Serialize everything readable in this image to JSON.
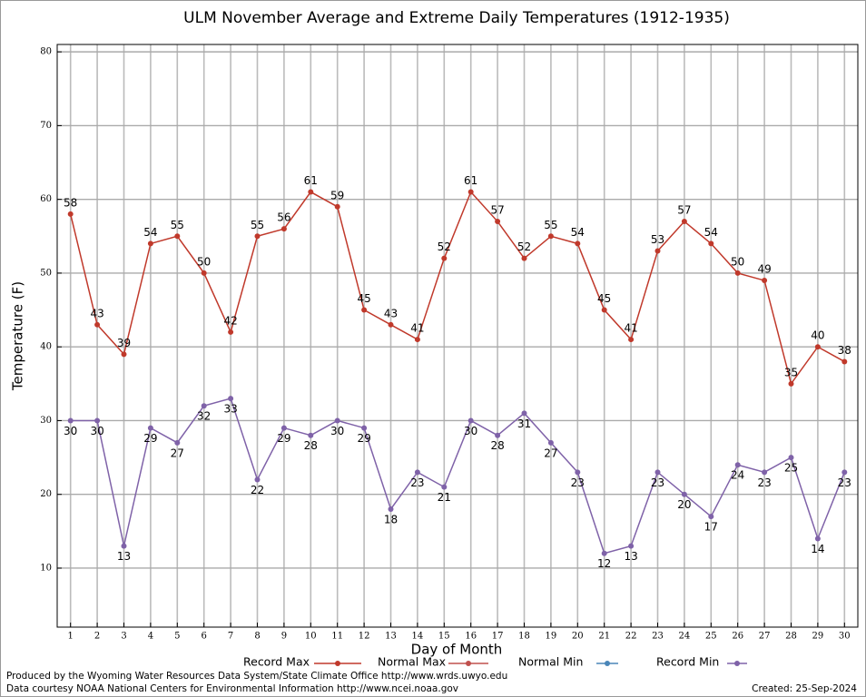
{
  "chart_data": {
    "type": "line",
    "title": "ULM November Average and Extreme Daily Temperatures (1912-1935)",
    "xlabel": "Day of Month",
    "ylabel": "Temperature (F)",
    "x": [
      1,
      2,
      3,
      4,
      5,
      6,
      7,
      8,
      9,
      10,
      11,
      12,
      13,
      14,
      15,
      16,
      17,
      18,
      19,
      20,
      21,
      22,
      23,
      24,
      25,
      26,
      27,
      28,
      29,
      30
    ],
    "xlim": [
      0.5,
      30.5
    ],
    "xticks": [
      1,
      2,
      3,
      4,
      5,
      6,
      7,
      8,
      9,
      10,
      11,
      12,
      13,
      14,
      15,
      16,
      17,
      18,
      19,
      20,
      21,
      22,
      23,
      24,
      25,
      26,
      27,
      28,
      29,
      30
    ],
    "ylim": [
      2,
      81
    ],
    "yticks": [
      10,
      20,
      30,
      40,
      50,
      60,
      70,
      80
    ],
    "grid": true,
    "series": [
      {
        "name": "Record Max",
        "color": "#c0392b",
        "values": [
          58,
          43,
          39,
          54,
          55,
          50,
          42,
          55,
          56,
          61,
          59,
          45,
          43,
          41,
          52,
          61,
          57,
          52,
          55,
          54,
          45,
          41,
          53,
          57,
          54,
          50,
          49,
          35,
          40,
          38
        ]
      },
      {
        "name": "Normal Max",
        "color": "#c0504d",
        "values": [
          null,
          null,
          null,
          null,
          null,
          null,
          null,
          null,
          null,
          null,
          null,
          null,
          null,
          null,
          null,
          null,
          null,
          null,
          null,
          null,
          null,
          null,
          null,
          null,
          null,
          null,
          null,
          null,
          null,
          null
        ]
      },
      {
        "name": "Normal Min",
        "color": "#4a86b8",
        "values": [
          null,
          null,
          null,
          null,
          null,
          null,
          null,
          null,
          null,
          null,
          null,
          null,
          null,
          null,
          null,
          null,
          null,
          null,
          null,
          null,
          null,
          null,
          null,
          null,
          null,
          null,
          null,
          null,
          null,
          null
        ]
      },
      {
        "name": "Record Min",
        "color": "#7f62a8",
        "values": [
          30,
          30,
          13,
          29,
          27,
          32,
          33,
          22,
          29,
          28,
          30,
          29,
          18,
          23,
          21,
          30,
          28,
          31,
          27,
          23,
          12,
          13,
          23,
          20,
          17,
          24,
          23,
          25,
          14,
          23
        ]
      }
    ],
    "footer_left": [
      "Produced by the Wyoming Water Resources Data System/State Climate Office http://www.wrds.uwyo.edu",
      "Data courtesy NOAA National Centers for Environmental Information http://www.ncei.noaa.gov"
    ],
    "footer_right": "Created:  25-Sep-2024"
  }
}
